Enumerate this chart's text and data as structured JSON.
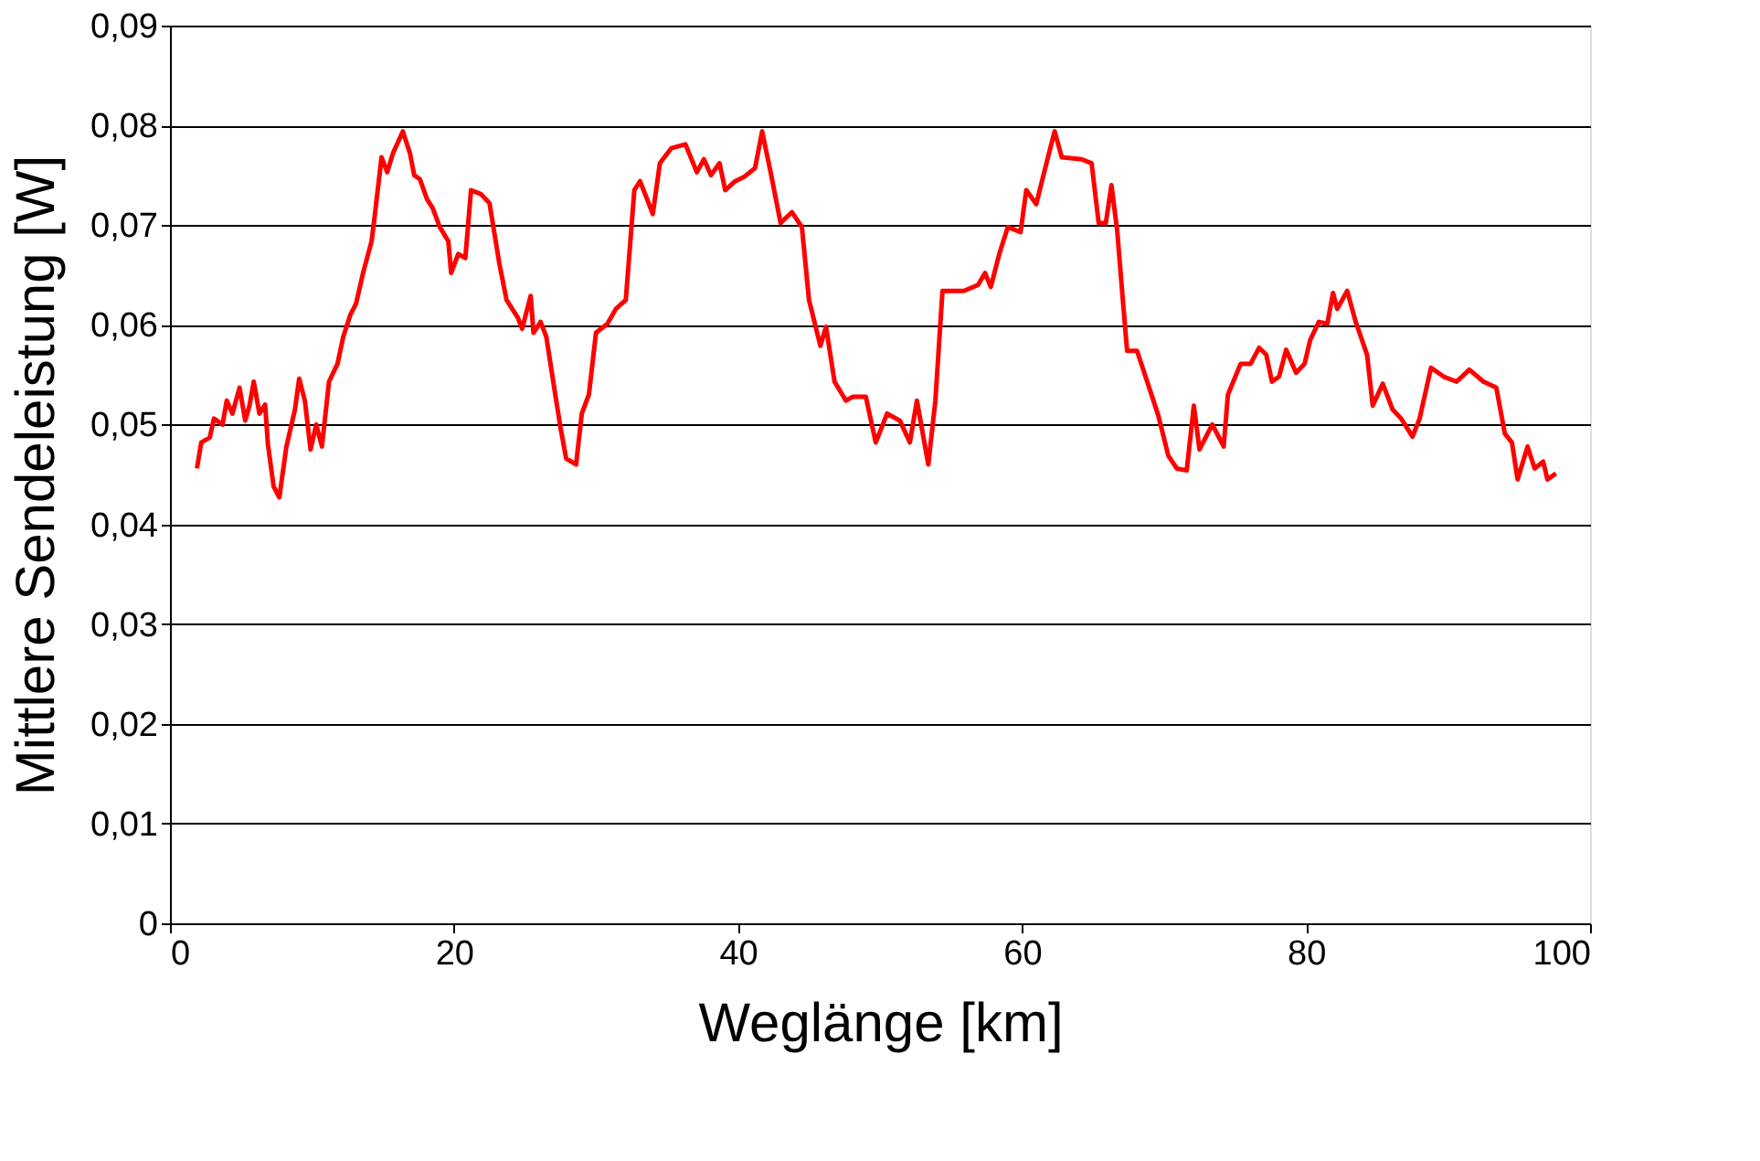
{
  "chart_data": {
    "type": "line",
    "xlabel": "Weglänge [km]",
    "ylabel": "Mittlere Sendeleistung [W]",
    "xlim": [
      0,
      100
    ],
    "xticks": [
      0,
      20,
      40,
      60,
      80,
      100
    ],
    "ylim": [
      0,
      0.09
    ],
    "yticks": [
      0,
      {
        "value": 0.01,
        "label": "0,01"
      },
      {
        "value": 0.02,
        "label": "0,02"
      },
      {
        "value": 0.03,
        "label": "0,03"
      },
      {
        "value": 0.04,
        "label": "0,04"
      },
      {
        "value": 0.05,
        "label": "0,05"
      },
      {
        "value": 0.06,
        "label": "0,06"
      },
      {
        "value": 0.07,
        "label": "0,07"
      },
      {
        "value": 0.08,
        "label": "0,08"
      },
      {
        "value": 0.09,
        "label": "0,09"
      }
    ],
    "grid": "y",
    "legend": false,
    "marker": "none",
    "line_style": "solid",
    "x": [
      1.9,
      2.2,
      2.8,
      3.1,
      3.7,
      4.0,
      4.4,
      4.9,
      5.3,
      5.6,
      5.9,
      6.3,
      6.7,
      6.9,
      7.3,
      7.7,
      8.2,
      8.8,
      9.1,
      9.5,
      9.9,
      10.3,
      10.7,
      11.2,
      11.8,
      12.2,
      12.7,
      13.1,
      13.6,
      14.2,
      14.4,
      14.9,
      15.3,
      15.7,
      16.4,
      16.9,
      17.2,
      17.6,
      18.1,
      18.5,
      19.0,
      19.6,
      19.8,
      20.3,
      20.8,
      21.2,
      21.9,
      22.5,
      23.2,
      23.7,
      24.5,
      24.8,
      25.4,
      25.6,
      26.1,
      26.5,
      27.2,
      27.5,
      27.9,
      28.6,
      29.0,
      29.5,
      30.0,
      30.8,
      31.4,
      32.1,
      32.7,
      33.1,
      33.6,
      34.0,
      34.5,
      35.3,
      36.3,
      37.1,
      37.6,
      38.1,
      38.7,
      39.1,
      39.8,
      40.4,
      41.2,
      41.7,
      42.3,
      43.0,
      43.8,
      44.5,
      45.0,
      45.8,
      46.2,
      46.8,
      47.6,
      48.1,
      49.0,
      49.7,
      50.5,
      51.4,
      52.1,
      52.6,
      53.4,
      53.9,
      54.4,
      55.9,
      56.9,
      57.4,
      57.8,
      58.4,
      59.0,
      59.9,
      60.3,
      61.0,
      61.9,
      62.3,
      62.8,
      64.2,
      64.9,
      65.4,
      65.9,
      66.3,
      66.7,
      67.1,
      67.4,
      68.1,
      68.7,
      69.6,
      70.3,
      70.9,
      71.6,
      72.1,
      72.5,
      73.4,
      74.2,
      74.5,
      75.4,
      76.1,
      76.7,
      77.2,
      77.6,
      78.1,
      78.6,
      79.3,
      79.9,
      80.3,
      80.9,
      81.5,
      81.9,
      82.2,
      82.9,
      83.5,
      84.3,
      84.7,
      85.4,
      86.1,
      86.7,
      87.5,
      88.0,
      88.8,
      89.7,
      90.6,
      91.5,
      92.5,
      93.4,
      94.0,
      94.5,
      94.9,
      95.6,
      96.1,
      96.7,
      97.0,
      97.6
    ],
    "series": [
      {
        "color": "#ff0000",
        "values": [
          0.0456,
          0.0482,
          0.0487,
          0.0506,
          0.05,
          0.0524,
          0.0511,
          0.0537,
          0.0504,
          0.0519,
          0.0543,
          0.0511,
          0.052,
          0.048,
          0.0438,
          0.0427,
          0.0478,
          0.0515,
          0.0546,
          0.0524,
          0.0475,
          0.05,
          0.0478,
          0.0543,
          0.0561,
          0.0588,
          0.061,
          0.0621,
          0.0652,
          0.0684,
          0.0707,
          0.0768,
          0.0753,
          0.0772,
          0.0794,
          0.0772,
          0.075,
          0.0746,
          0.0726,
          0.0717,
          0.0698,
          0.0684,
          0.0652,
          0.0671,
          0.0667,
          0.0735,
          0.0731,
          0.0722,
          0.0661,
          0.0625,
          0.0607,
          0.0596,
          0.0629,
          0.0592,
          0.0603,
          0.0588,
          0.0524,
          0.0497,
          0.0466,
          0.046,
          0.0511,
          0.053,
          0.0592,
          0.0601,
          0.0616,
          0.0625,
          0.0735,
          0.0744,
          0.0726,
          0.0711,
          0.0762,
          0.0777,
          0.0781,
          0.0753,
          0.0766,
          0.075,
          0.0762,
          0.0735,
          0.0744,
          0.0748,
          0.0757,
          0.0794,
          0.0753,
          0.0702,
          0.0713,
          0.0698,
          0.0625,
          0.0579,
          0.0598,
          0.0543,
          0.0524,
          0.0528,
          0.0528,
          0.0482,
          0.0511,
          0.0504,
          0.0482,
          0.0524,
          0.046,
          0.0524,
          0.0634,
          0.0634,
          0.064,
          0.0652,
          0.0638,
          0.0671,
          0.0698,
          0.0693,
          0.0735,
          0.0721,
          0.0772,
          0.0794,
          0.0768,
          0.0766,
          0.0762,
          0.0702,
          0.0702,
          0.074,
          0.0695,
          0.0625,
          0.0574,
          0.0574,
          0.0548,
          0.0509,
          0.0469,
          0.0456,
          0.0454,
          0.0519,
          0.0475,
          0.05,
          0.0478,
          0.053,
          0.0561,
          0.0561,
          0.0577,
          0.057,
          0.0543,
          0.0548,
          0.0575,
          0.0552,
          0.0561,
          0.0585,
          0.0603,
          0.0601,
          0.0632,
          0.0616,
          0.0634,
          0.0603,
          0.057,
          0.0519,
          0.0541,
          0.0515,
          0.0506,
          0.0488,
          0.0506,
          0.0557,
          0.0548,
          0.0543,
          0.0555,
          0.0543,
          0.0537,
          0.0491,
          0.0482,
          0.0445,
          0.0478,
          0.0456,
          0.0463,
          0.0445,
          0.0451
        ]
      }
    ]
  }
}
